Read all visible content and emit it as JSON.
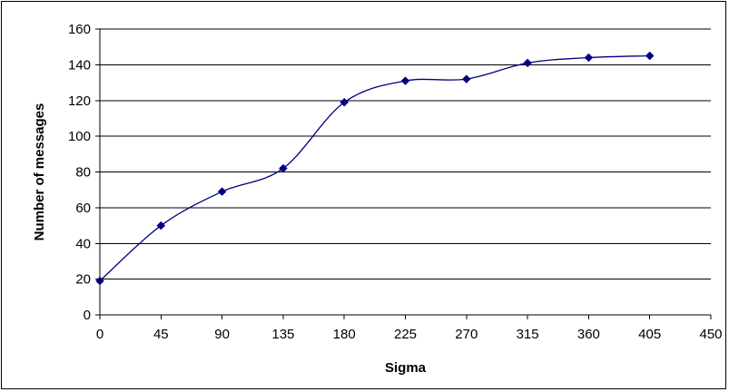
{
  "chart_data": {
    "type": "line",
    "title": "",
    "xlabel": "Sigma",
    "ylabel": "Number of messages",
    "xlim": [
      0,
      450
    ],
    "ylim": [
      0,
      160
    ],
    "x_ticks": [
      "0",
      "45",
      "90",
      "135",
      "180",
      "225",
      "270",
      "315",
      "360",
      "405",
      "450"
    ],
    "y_ticks": [
      "0",
      "20",
      "40",
      "60",
      "80",
      "100",
      "120",
      "140",
      "160"
    ],
    "grid": "horizontal",
    "legend": "none",
    "smooth": true,
    "series": [
      {
        "x": [
          0,
          45,
          90,
          135,
          180,
          225,
          270,
          315,
          360,
          405
        ],
        "y": [
          19,
          50,
          69,
          82,
          119,
          131,
          132,
          141,
          144,
          145
        ],
        "color": "#000080",
        "marker": "diamond"
      }
    ]
  }
}
